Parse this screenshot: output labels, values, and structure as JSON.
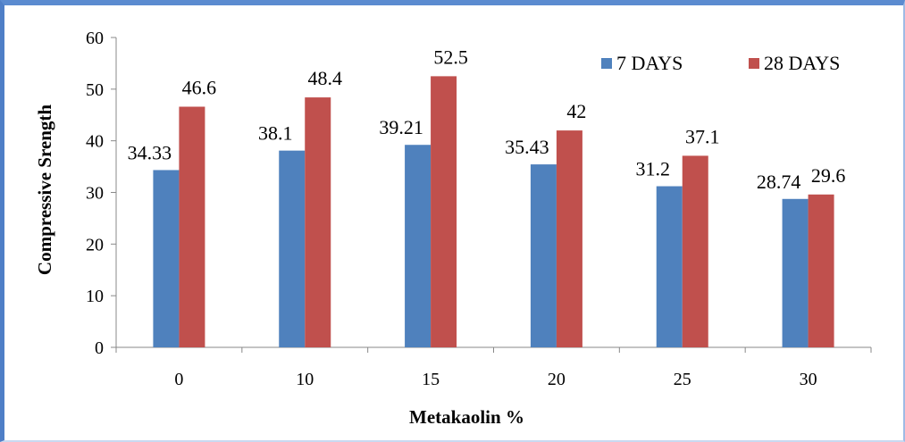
{
  "chart_data": {
    "type": "bar",
    "title": "",
    "xlabel": "Metakaolin %",
    "ylabel": "Compressive Srength",
    "categories": [
      "0",
      "10",
      "15",
      "20",
      "25",
      "30"
    ],
    "series": [
      {
        "name": "7 DAYS",
        "values": [
          34.33,
          38.1,
          39.21,
          35.43,
          31.2,
          28.74
        ],
        "labels": [
          "34.33",
          "38.1",
          "39.21",
          "35.43",
          "31.2",
          "28.74"
        ],
        "color": "#4f81bd"
      },
      {
        "name": "28 DAYS",
        "values": [
          46.6,
          48.4,
          52.5,
          42,
          37.1,
          29.6
        ],
        "labels": [
          "46.6",
          "48.4",
          "52.5",
          "42",
          "37.1",
          "29.6"
        ],
        "color": "#c0504d"
      }
    ],
    "ylim": [
      0,
      60
    ],
    "yticks": [
      0,
      10,
      20,
      30,
      40,
      50,
      60
    ],
    "grid": false,
    "legend_position": "top-right"
  },
  "colors": {
    "frame_accent": "#4f7fc7"
  }
}
